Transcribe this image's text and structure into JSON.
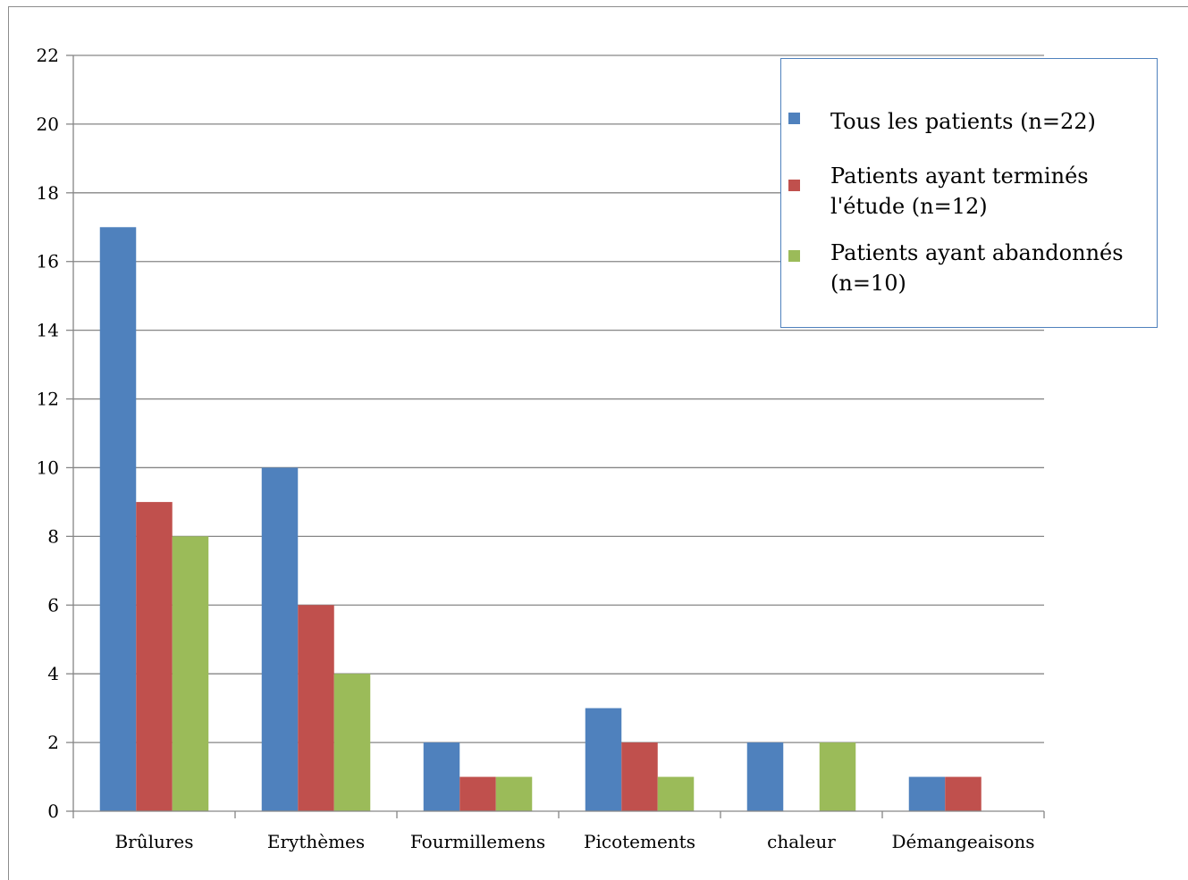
{
  "chart_data": {
    "type": "bar",
    "categories": [
      "Brûlures",
      "Erythèmes",
      "Fourmillemens",
      "Picotements",
      "chaleur",
      "Démangeaisons"
    ],
    "series": [
      {
        "name": "Tous les patients (n=22)",
        "color": "#4f81bd",
        "values": [
          17,
          10,
          2,
          3,
          2,
          1
        ]
      },
      {
        "name": "Patients ayant terminés l'étude (n=12)",
        "color": "#c0504d",
        "values": [
          9,
          6,
          1,
          2,
          0,
          1
        ]
      },
      {
        "name": "Patients ayant abandonnés (n=10)",
        "color": "#9bbb59",
        "values": [
          8,
          4,
          1,
          1,
          2,
          0
        ]
      }
    ],
    "y_ticks": [
      "0",
      "2",
      "4",
      "6",
      "8",
      "10",
      "12",
      "14",
      "16",
      "18",
      "20",
      "22"
    ],
    "ylim": [
      0,
      22
    ],
    "grid": true,
    "legend_position": "top-right"
  }
}
